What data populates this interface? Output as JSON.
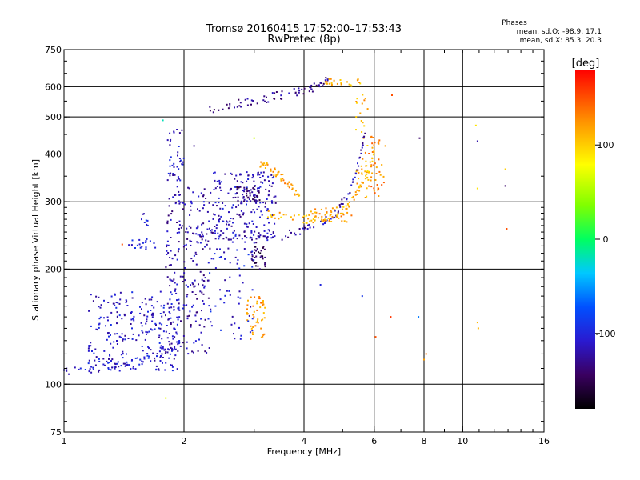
{
  "chart_data": {
    "type": "scatter",
    "title": "Tromsø 20160415 17:52:00–17:53:43",
    "subtitle": "RwPretec (8p)",
    "xlabel": "Frequency [MHz]",
    "ylabel": "Stationary phase Virtual Height [km]",
    "x_scale": "log",
    "y_scale": "log",
    "xlim": [
      1,
      16
    ],
    "ylim": [
      75,
      750
    ],
    "x_ticks": [
      1,
      2,
      4,
      6,
      8,
      10,
      16
    ],
    "y_ticks": [
      75,
      100,
      200,
      300,
      400,
      500,
      600,
      750
    ],
    "x_grid": [
      2,
      4,
      6,
      8,
      10
    ],
    "y_grid": [
      100,
      200,
      300,
      400,
      500,
      600
    ],
    "grid": true,
    "phases": {
      "title": "Phases",
      "line1": "mean, sd,O: -98.9, 17.1",
      "line2": "mean, sd,X:  85.3, 20.3"
    },
    "colorbar": {
      "label": "[deg]",
      "range": [
        -180,
        180
      ],
      "ticks": [
        100,
        0,
        -100
      ]
    },
    "traces": [
      {
        "x": [
          1.0,
          1.2,
          1.4,
          1.6,
          1.8,
          1.95
        ],
        "y": [
          108,
          110,
          113,
          117,
          122,
          128
        ],
        "phase": -110
      },
      {
        "x": [
          2.0,
          2.3,
          2.7,
          3.2,
          3.8,
          4.3,
          4.8,
          5.2,
          5.5,
          5.7
        ],
        "y": [
          255,
          245,
          240,
          240,
          248,
          260,
          280,
          320,
          380,
          460
        ],
        "phase": -120
      },
      {
        "x": [
          2.3,
          2.7,
          3.1,
          3.5,
          3.9,
          4.3,
          4.6
        ],
        "y": [
          520,
          540,
          555,
          570,
          585,
          600,
          625
        ],
        "phase": -130
      },
      {
        "x": [
          3.2,
          3.6,
          4.1,
          4.6,
          5.1,
          5.5,
          5.8,
          6.0
        ],
        "y": [
          280,
          275,
          270,
          275,
          290,
          320,
          360,
          400
        ],
        "phase": 110
      },
      {
        "x": [
          3.1,
          3.3,
          3.5,
          3.7,
          3.9
        ],
        "y": [
          380,
          365,
          350,
          330,
          310
        ],
        "phase": 120
      }
    ],
    "clusters": [
      {
        "x": [
          1.15,
          1.95
        ],
        "y": [
          108,
          175
        ],
        "n": 260,
        "phase": -110
      },
      {
        "x": [
          1.8,
          2.35
        ],
        "y": [
          120,
          330
        ],
        "n": 230,
        "phase": -120
      },
      {
        "x": [
          1.82,
          2.0
        ],
        "y": [
          340,
          470
        ],
        "n": 40,
        "phase": -110
      },
      {
        "x": [
          2.35,
          3.4
        ],
        "y": [
          240,
          360
        ],
        "n": 210,
        "phase": -115
      },
      {
        "x": [
          2.7,
          3.1
        ],
        "y": [
          300,
          330
        ],
        "n": 40,
        "phase": -140
      },
      {
        "x": [
          2.95,
          3.2
        ],
        "y": [
          200,
          230
        ],
        "n": 35,
        "phase": -150
      },
      {
        "x": [
          2.85,
          3.2
        ],
        "y": [
          128,
          170
        ],
        "n": 50,
        "phase": 125
      },
      {
        "x": [
          2.3,
          3.0
        ],
        "y": [
          130,
          230
        ],
        "n": 60,
        "phase": -105
      },
      {
        "x": [
          1.45,
          1.7
        ],
        "y": [
          225,
          240
        ],
        "n": 20,
        "phase": -100
      },
      {
        "x": [
          1.55,
          1.65
        ],
        "y": [
          260,
          280
        ],
        "n": 8,
        "phase": -100
      },
      {
        "x": [
          4.1,
          5.3
        ],
        "y": [
          265,
          290
        ],
        "n": 40,
        "phase": 120
      },
      {
        "x": [
          5.4,
          5.8
        ],
        "y": [
          300,
          580
        ],
        "n": 40,
        "phase": 115
      },
      {
        "x": [
          5.8,
          6.4
        ],
        "y": [
          310,
          450
        ],
        "n": 40,
        "phase": 130
      },
      {
        "x": [
          4.5,
          5.6
        ],
        "y": [
          600,
          630
        ],
        "n": 25,
        "phase": 110
      }
    ],
    "outliers": [
      {
        "x": 1.4,
        "y": 232,
        "phase": 150
      },
      {
        "x": 1.77,
        "y": 490,
        "phase": -20
      },
      {
        "x": 1.8,
        "y": 92,
        "phase": 70
      },
      {
        "x": 2.12,
        "y": 420,
        "phase": -130
      },
      {
        "x": 4.4,
        "y": 182,
        "phase": -100
      },
      {
        "x": 5.6,
        "y": 170,
        "phase": -90
      },
      {
        "x": 6.05,
        "y": 133,
        "phase": 150
      },
      {
        "x": 6.6,
        "y": 150,
        "phase": 160
      },
      {
        "x": 6.65,
        "y": 570,
        "phase": 150
      },
      {
        "x": 7.75,
        "y": 150,
        "phase": -60
      },
      {
        "x": 7.8,
        "y": 440,
        "phase": -140
      },
      {
        "x": 8.0,
        "y": 116,
        "phase": 120
      },
      {
        "x": 8.1,
        "y": 120,
        "phase": 135
      },
      {
        "x": 10.8,
        "y": 475,
        "phase": 90
      },
      {
        "x": 10.9,
        "y": 432,
        "phase": -120
      },
      {
        "x": 10.9,
        "y": 325,
        "phase": 90
      },
      {
        "x": 10.9,
        "y": 145,
        "phase": 110
      },
      {
        "x": 10.95,
        "y": 140,
        "phase": 110
      },
      {
        "x": 12.8,
        "y": 365,
        "phase": 100
      },
      {
        "x": 12.8,
        "y": 330,
        "phase": -140
      },
      {
        "x": 12.9,
        "y": 255,
        "phase": 150
      },
      {
        "x": 3.0,
        "y": 440,
        "phase": 60
      },
      {
        "x": 6.4,
        "y": 420,
        "phase": 120
      }
    ]
  }
}
